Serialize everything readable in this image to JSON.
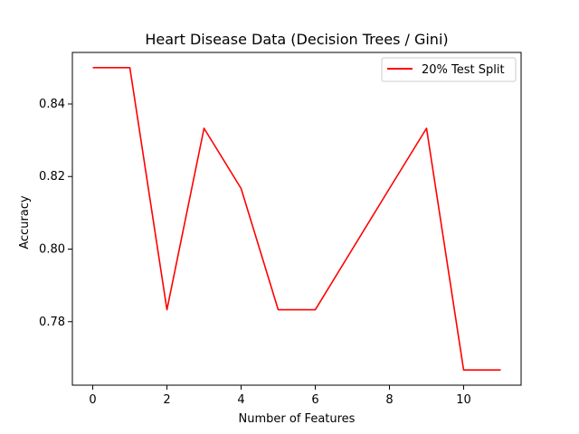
{
  "chart_data": {
    "type": "line",
    "title": "Heart Disease Data (Decision Trees / Gini)",
    "xlabel": "Number of Features",
    "ylabel": "Accuracy",
    "xlim": [
      -0.55,
      11.55
    ],
    "ylim": [
      0.7625,
      0.8542
    ],
    "x_ticks": [
      0,
      2,
      4,
      6,
      8,
      10
    ],
    "y_ticks": [
      0.78,
      0.8,
      0.82,
      0.84
    ],
    "x_tick_labels": [
      "0",
      "2",
      "4",
      "6",
      "8",
      "10"
    ],
    "y_tick_labels": [
      "0.78",
      "0.80",
      "0.82",
      "0.84"
    ],
    "grid": false,
    "legend_position": "top-right",
    "series": [
      {
        "name": "20% Test Split",
        "color": "#ff0000",
        "x": [
          0,
          1,
          2,
          3,
          4,
          5,
          6,
          7,
          8,
          9,
          10,
          11
        ],
        "values": [
          0.85,
          0.85,
          0.7833,
          0.8333,
          0.8167,
          0.7833,
          0.7833,
          0.8,
          0.8167,
          0.8333,
          0.7667,
          0.7667
        ]
      }
    ]
  }
}
